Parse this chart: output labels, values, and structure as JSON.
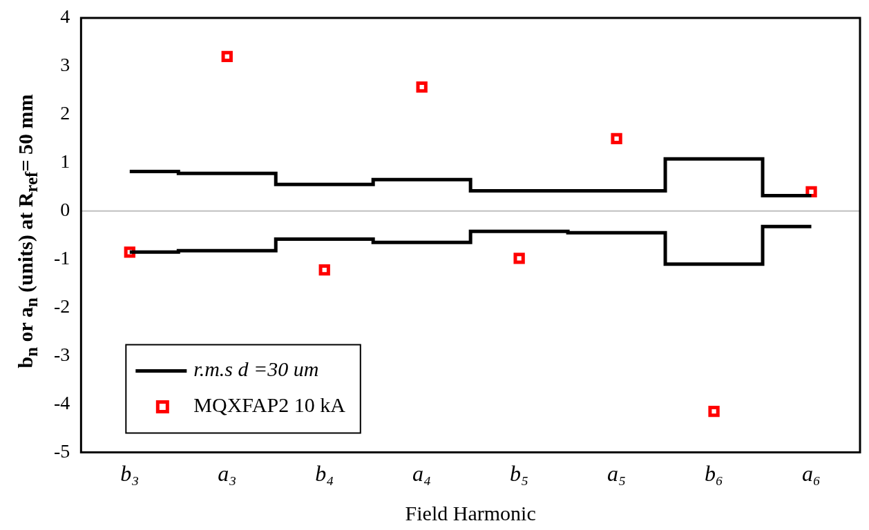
{
  "chart_data": {
    "type": "step",
    "xlabel": "Field Harmonic",
    "ylabel": "b$_{n}$ or a$_{n}$ (units) at R$_{ref}$= 50 mm",
    "categories": [
      "b₃",
      "a₃",
      "b₄",
      "a₄",
      "b₅",
      "a₅",
      "b₆",
      "a₆"
    ],
    "series": [
      {
        "name": "r.m.s d =30 um",
        "color": "#000000",
        "values": [
          0.82,
          0.78,
          0.55,
          0.65,
          0.42,
          0.42,
          1.08,
          0.32
        ]
      },
      {
        "color": "#000000",
        "values": [
          -0.85,
          -0.82,
          -0.58,
          -0.65,
          -0.42,
          -0.45,
          -1.1,
          -0.32
        ]
      },
      {
        "name": "MQXFAP2 10 kA",
        "type": "scatter",
        "color": "#ff0000",
        "marker": "square",
        "values": [
          -0.85,
          3.2,
          -1.22,
          2.57,
          -0.98,
          1.5,
          -4.15,
          0.4
        ]
      }
    ],
    "ylim": [
      -5,
      4
    ],
    "yticks": [
      -5,
      -4,
      -3,
      -2,
      -1,
      0,
      1,
      2,
      3,
      4
    ],
    "ref_lines": [
      {
        "axis": "y",
        "value": 0,
        "color": "#bfbfbf"
      }
    ],
    "grid": false,
    "legend": "bottom left"
  }
}
